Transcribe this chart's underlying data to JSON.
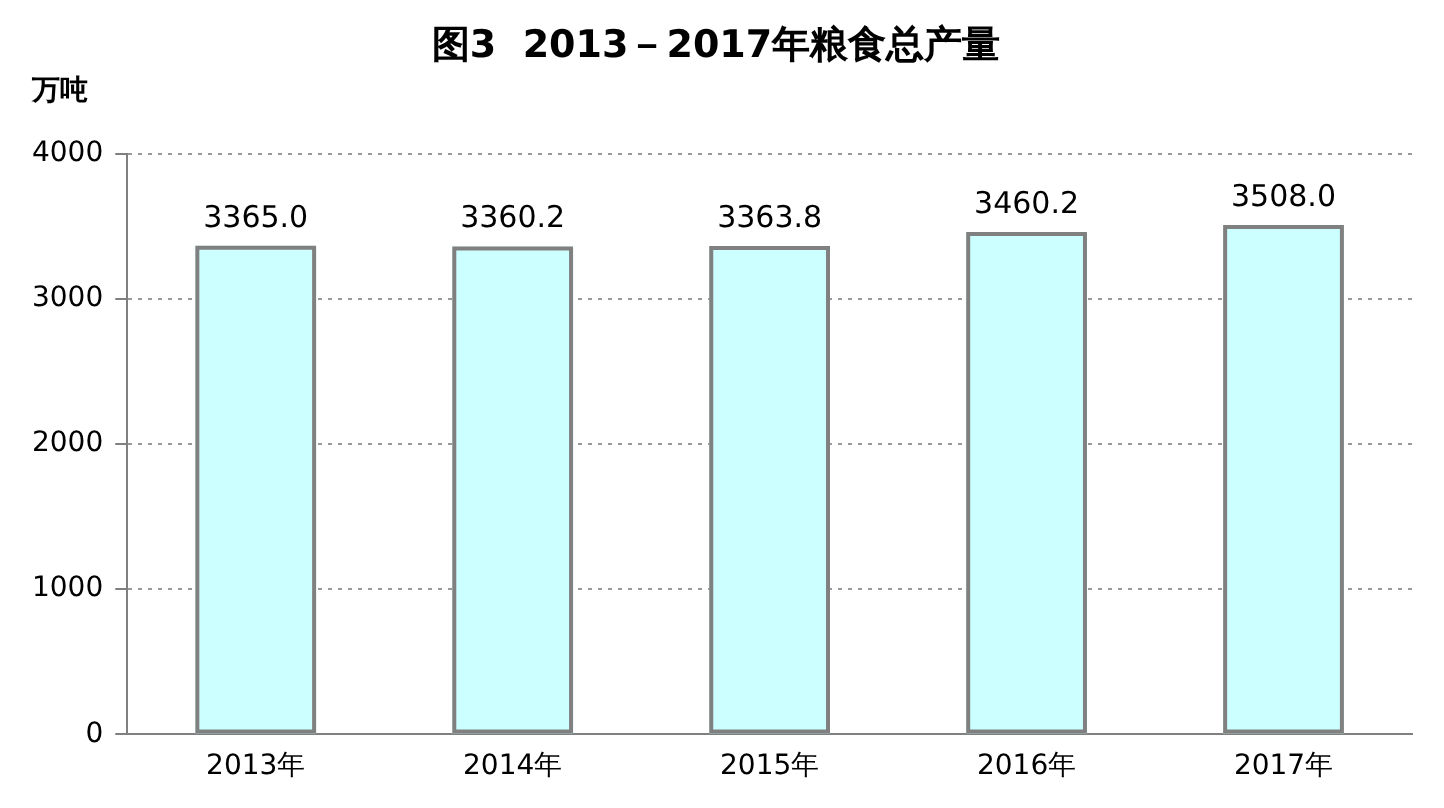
{
  "chart_data": {
    "type": "bar",
    "title": "图3  2013－2017年粮食总产量",
    "ylabel": "万吨",
    "categories": [
      "2013年",
      "2014年",
      "2015年",
      "2016年",
      "2017年"
    ],
    "values": [
      3365.0,
      3360.2,
      3363.8,
      3460.2,
      3508.0
    ],
    "value_labels": [
      "3365.0",
      "3360.2",
      "3363.8",
      "3460.2",
      "3508.0"
    ],
    "color": "#ccffff",
    "ylim": [
      0,
      4000
    ],
    "yticks": [
      0,
      1000,
      2000,
      3000,
      4000
    ],
    "grid": "y",
    "legend": false
  }
}
